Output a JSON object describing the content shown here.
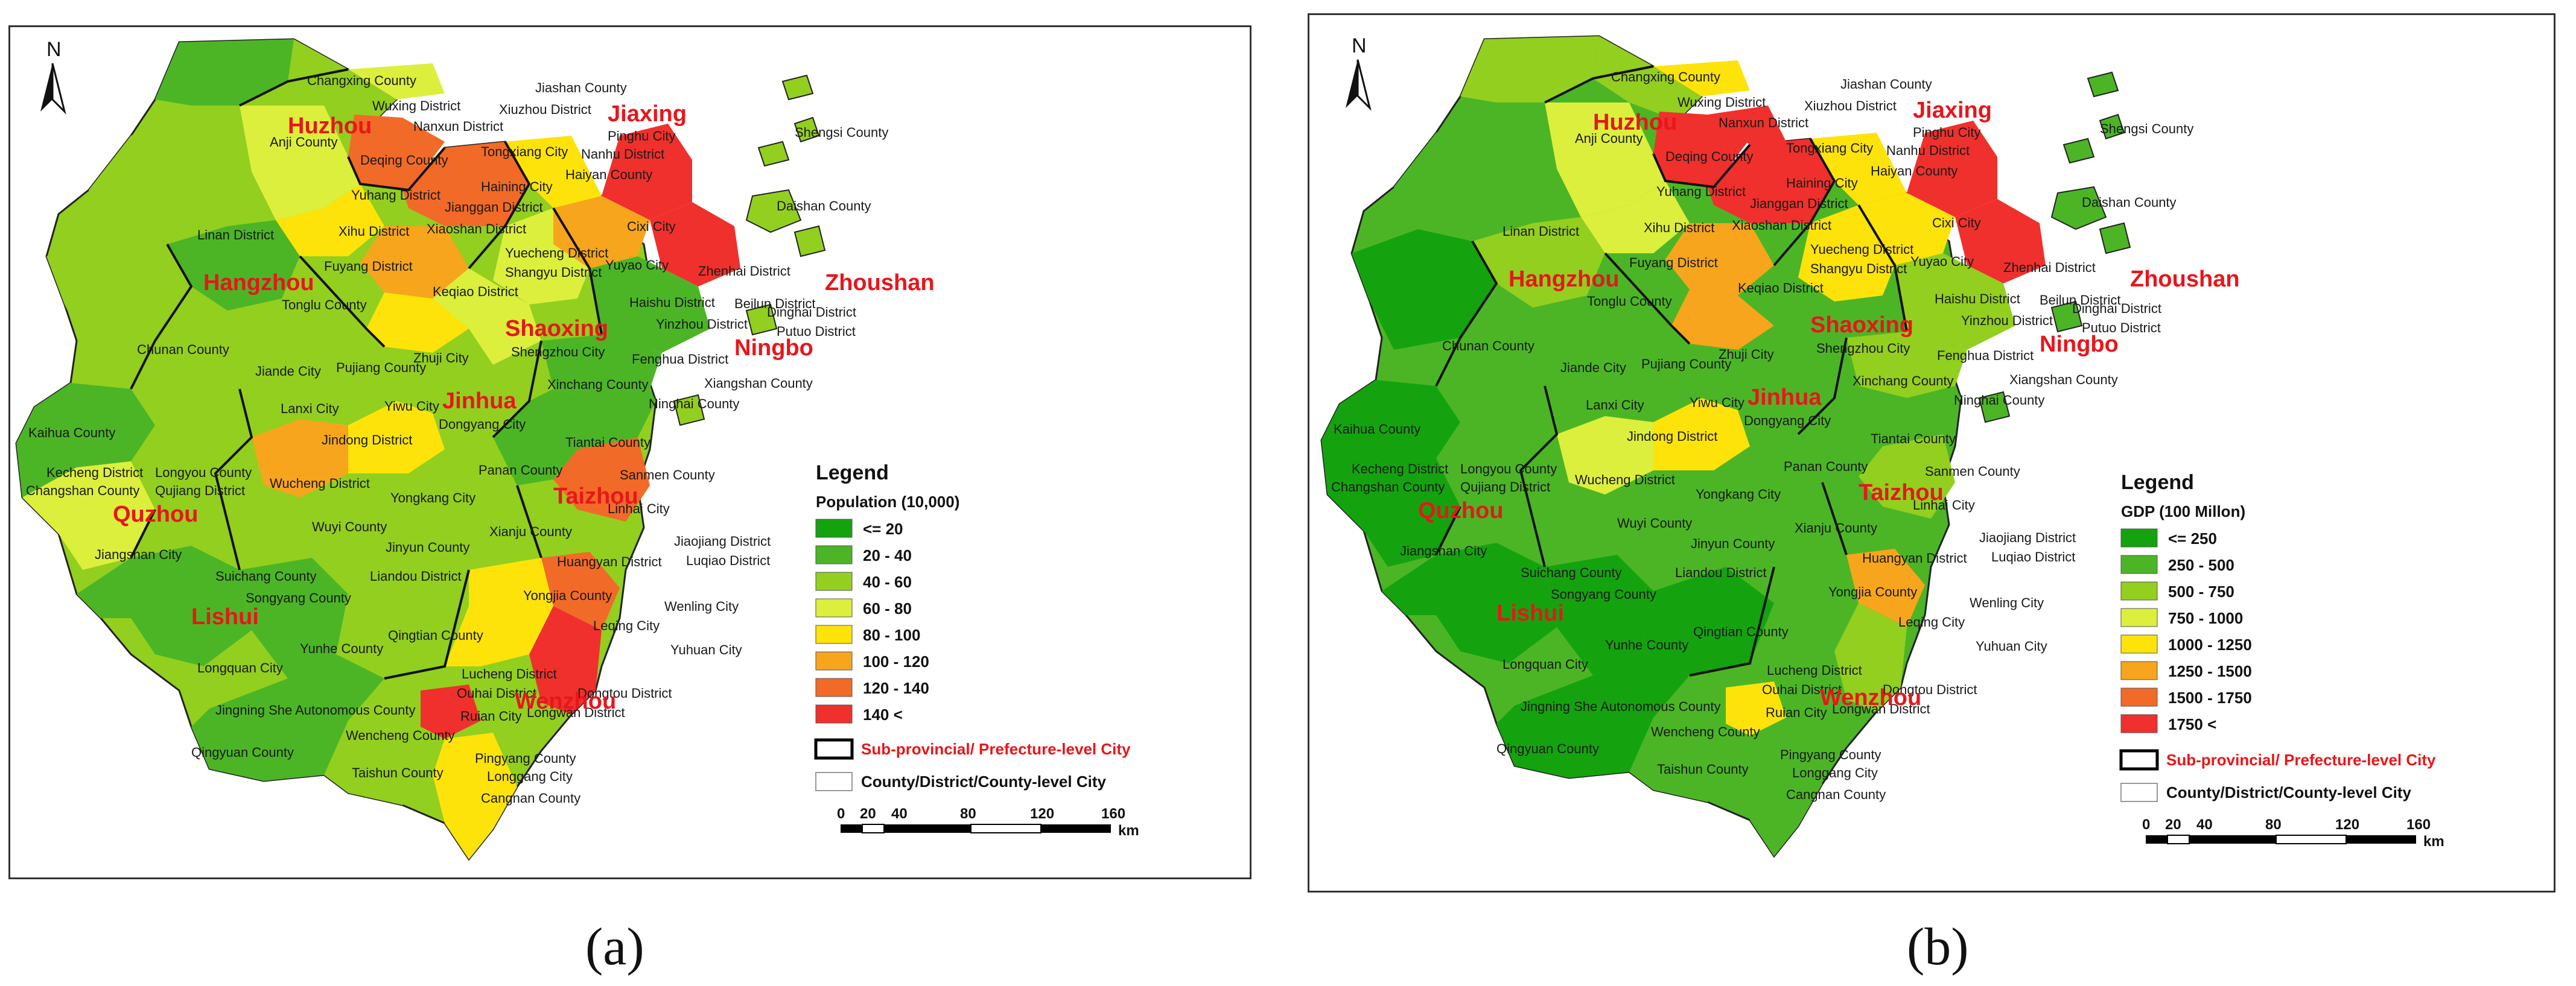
{
  "maps": [
    {
      "id": "a",
      "caption": "(a)",
      "legend_title": "Legend",
      "legend_subtitle": "Population  (10,000)",
      "classes": [
        {
          "label": "<= 20",
          "color": "#14a30e"
        },
        {
          "label": "20 - 40",
          "color": "#4cb526"
        },
        {
          "label": "40 - 60",
          "color": "#92cf1f"
        },
        {
          "label": "60 - 80",
          "color": "#dcef3c"
        },
        {
          "label": "80 - 100",
          "color": "#fde30a"
        },
        {
          "label": "100 - 120",
          "color": "#f7a51c"
        },
        {
          "label": "120 - 140",
          "color": "#f26a28"
        },
        {
          "label": "140 <",
          "color": "#f0302c"
        }
      ],
      "boundary_city": "Sub-provincial/ Prefecture-level City",
      "boundary_county": "County/District/County-level City",
      "scale_ticks": [
        "0",
        "20",
        "40",
        "80",
        "120",
        "160"
      ],
      "scale_unit": "km",
      "north": "N"
    },
    {
      "id": "b",
      "caption": "(b)",
      "legend_title": "Legend",
      "legend_subtitle": "GDP  (100 Millon)",
      "classes": [
        {
          "label": "<= 250",
          "color": "#14a30e"
        },
        {
          "label": "250 - 500",
          "color": "#4cb526"
        },
        {
          "label": "500 - 750",
          "color": "#92cf1f"
        },
        {
          "label": "750 - 1000",
          "color": "#dcef3c"
        },
        {
          "label": "1000 - 1250",
          "color": "#fde30a"
        },
        {
          "label": "1250 - 1500",
          "color": "#f7a51c"
        },
        {
          "label": "1500 - 1750",
          "color": "#f26a28"
        },
        {
          "label": "1750 <",
          "color": "#f0302c"
        }
      ],
      "boundary_city": "Sub-provincial/ Prefecture-level City",
      "boundary_county": "County/District/County-level City",
      "scale_ticks": [
        "0",
        "20",
        "40",
        "80",
        "120",
        "160"
      ],
      "scale_unit": "km",
      "north": "N"
    }
  ],
  "cities": [
    "Huzhou",
    "Jiaxing",
    "Hangzhou",
    "Shaoxing",
    "Ningbo",
    "Zhoushan",
    "Jinhua",
    "Quzhou",
    "Taizhou",
    "Lishui",
    "Wenzhou"
  ],
  "counties": [
    "Changxing County",
    "Jiashan County",
    "Wuxing District",
    "Xiuzhou District",
    "Nanxun District",
    "Pinghu City",
    "Anji County",
    "Deqing County",
    "Tongxiang City",
    "Nanhu District",
    "Haiyan County",
    "Shengsi County",
    "Yuhang District",
    "Haining City",
    "Jianggan District",
    "Daishan County",
    "Linan District",
    "Xihu District",
    "Xiaoshan District",
    "Cixi City",
    "Fuyang District",
    "Yuecheng District",
    "Yuyao City",
    "Zhenhai District",
    "Shangyu District",
    "Tonglu County",
    "Keqiao District",
    "Haishu District",
    "Beilun District",
    "Yinzhou District",
    "Dinghai District",
    "Putuo District",
    "Zhuji City",
    "Shengzhou City",
    "Fenghua District",
    "Chunan County",
    "Jiande City",
    "Pujiang County",
    "Xinchang County",
    "Xiangshan County",
    "Lanxi City",
    "Yiwu City",
    "Dongyang City",
    "Ninghai County",
    "Kaihua County",
    "Jindong District",
    "Tiantai County",
    "Kecheng District",
    "Longyou County",
    "Panan County",
    "Changshan County",
    "Qujiang District",
    "Wucheng District",
    "Sanmen County",
    "Yongkang City",
    "Linhai City",
    "Wuyi County",
    "Xianju County",
    "Jiangshan City",
    "Jiaojiang District",
    "Jinyun County",
    "Huangyan District",
    "Luqiao District",
    "Suichang County",
    "Liandou District",
    "Songyang County",
    "Yongjia County",
    "Wenling City",
    "Qingtian County",
    "Leqing City",
    "Yuhuan City",
    "Yunhe County",
    "Longquan City",
    "Lucheng District",
    "Ouhai District",
    "Dongtou District",
    "Jingning She Autonomous County",
    "Longwan District",
    "Ruian City",
    "Wencheng County",
    "Qingyuan County",
    "Pingyang County",
    "Taishun County",
    "Longgang City",
    "Cangnan County"
  ]
}
